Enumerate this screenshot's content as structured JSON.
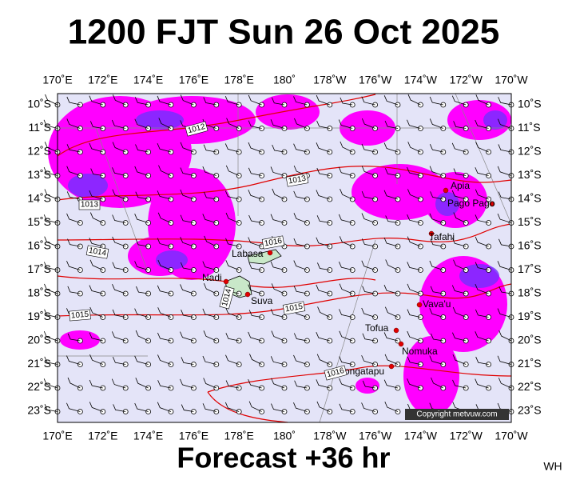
{
  "title": "1200 FJT Sun 26 Oct 2025",
  "footer": "Forecast +36 hr",
  "initials": "WH",
  "copyright": "Copyright metvuw.com",
  "map": {
    "lon_labels": [
      "170˚E",
      "172˚E",
      "174˚E",
      "176˚E",
      "178˚E",
      "180˚",
      "178˚W",
      "176˚W",
      "174˚W",
      "172˚W",
      "170˚W"
    ],
    "lat_labels": [
      "10˚S",
      "11˚S",
      "12˚S",
      "13˚S",
      "14˚S",
      "15˚S",
      "16˚S",
      "17˚S",
      "18˚S",
      "19˚S",
      "20˚S",
      "21˚S",
      "22˚S",
      "23˚S"
    ],
    "places": [
      "Apia",
      "Pago Pago",
      "Tafahi",
      "Labasa",
      "Nadi",
      "Suva",
      "Vava'u",
      "Tofua",
      "Nomuka",
      "Tongatapu"
    ],
    "isobar_labels": [
      "1012",
      "1013",
      "1013",
      "1014",
      "1016",
      "1014",
      "1015",
      "1015",
      "1016"
    ]
  }
}
